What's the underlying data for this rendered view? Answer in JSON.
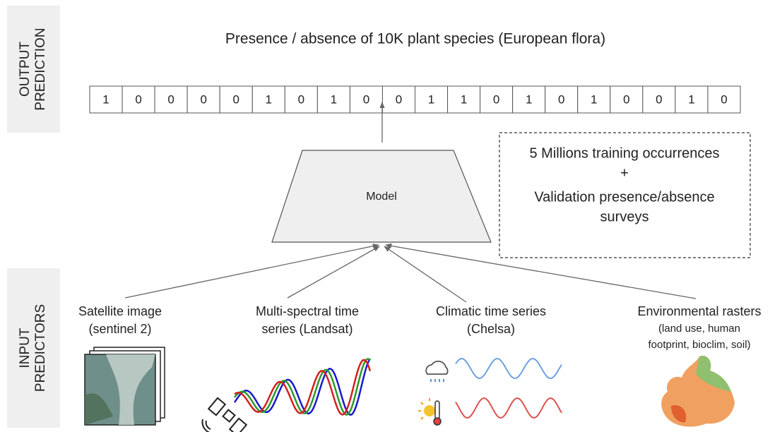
{
  "side_labels": {
    "output": [
      "OUTPUT",
      "PREDICTION"
    ],
    "input": [
      "INPUT",
      "PREDICTORS"
    ]
  },
  "output": {
    "title": "Presence / absence of 10K plant species (European flora)",
    "vector": [
      1,
      0,
      0,
      0,
      0,
      1,
      0,
      1,
      0,
      0,
      1,
      1,
      0,
      1,
      0,
      1,
      0,
      0,
      1,
      0
    ]
  },
  "model": {
    "label": "Model"
  },
  "training_box": {
    "lines": [
      "5 Millions training occurrences",
      "+",
      "Validation presence/absence",
      "surveys"
    ]
  },
  "inputs": [
    {
      "lines": [
        "Satellite image",
        "(sentinel 2)"
      ]
    },
    {
      "lines": [
        "Multi-spectral time",
        "series (Landsat)"
      ]
    },
    {
      "lines": [
        "Climatic time series",
        "(Chelsa)"
      ]
    },
    {
      "title": "Environmental rasters",
      "lines": [
        "(land use, human",
        "footprint, bioclim, soil)"
      ]
    }
  ]
}
